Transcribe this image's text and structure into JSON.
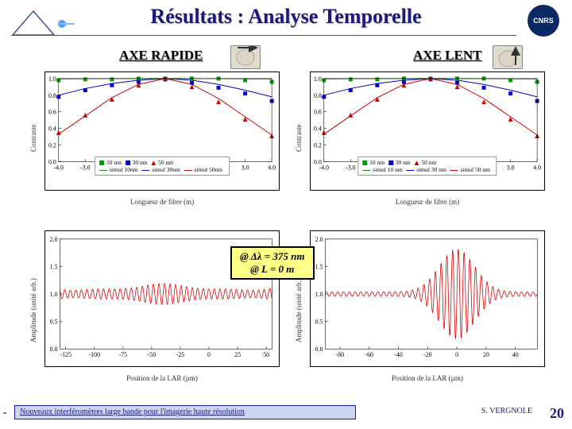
{
  "header": {
    "title": "Résultats : Analyse Temporelle",
    "logo_right_text": "CNRS"
  },
  "axis_headers": {
    "rapide": "AXE RAPIDE",
    "lent": "AXE LENT"
  },
  "top_chart": {
    "type": "scatter+line",
    "yaxis_label": "Contraste",
    "xaxis_label": "Longueur de fibre (m)",
    "ylim": [
      0.0,
      1.0
    ],
    "yticks": [
      0.0,
      0.2,
      0.4,
      0.6,
      0.8,
      1.0
    ],
    "xlim": [
      -4.0,
      4.0
    ],
    "xticks": [
      -4.0,
      -3.0,
      -2.0,
      -1.0,
      0.0,
      1.0,
      2.0,
      3.0,
      4.0
    ],
    "legend_items": [
      {
        "marker": "square",
        "color": "#009900",
        "label": "10 nm"
      },
      {
        "marker": "line",
        "color": "#009900",
        "label": "simul 10nm"
      },
      {
        "marker": "square",
        "color": "#0000cc",
        "label": "30 nm"
      },
      {
        "marker": "line",
        "color": "#0000cc",
        "label": "simul 30nm"
      },
      {
        "marker": "triangle",
        "color": "#cc0000",
        "label": "50 nm"
      },
      {
        "marker": "line",
        "color": "#cc0000",
        "label": "simul 50nm"
      }
    ],
    "series": {
      "green_pts": {
        "color": "#009900",
        "x": [
          -4,
          -3,
          -2,
          -1,
          0,
          1,
          2,
          3,
          4
        ],
        "y": [
          0.98,
          0.99,
          0.99,
          1.0,
          1.0,
          1.0,
          1.0,
          0.98,
          0.96
        ]
      },
      "blue_pts": {
        "color": "#0000cc",
        "x": [
          -4,
          -3,
          -2,
          -1,
          0,
          1,
          2,
          3,
          4
        ],
        "y": [
          0.78,
          0.86,
          0.92,
          0.96,
          0.99,
          0.95,
          0.89,
          0.82,
          0.73
        ]
      },
      "red_pts": {
        "color": "#cc0000",
        "marker": "triangle",
        "x": [
          -4,
          -3,
          -2,
          -1,
          0,
          1,
          2,
          3,
          4
        ],
        "y": [
          0.35,
          0.56,
          0.75,
          0.92,
          1.0,
          0.9,
          0.72,
          0.51,
          0.31
        ]
      },
      "green_line": {
        "color": "#009900",
        "x": [
          -4,
          -3,
          -2,
          -1,
          0,
          1,
          2,
          3,
          4
        ],
        "y": [
          0.995,
          0.998,
          0.999,
          1.0,
          1.0,
          1.0,
          0.999,
          0.997,
          0.995
        ]
      },
      "blue_line": {
        "color": "#0000cc",
        "x": [
          -4,
          -3,
          -2,
          -1,
          0,
          1,
          2,
          3,
          4
        ],
        "y": [
          0.8,
          0.88,
          0.94,
          0.98,
          1.0,
          0.98,
          0.93,
          0.86,
          0.78
        ]
      },
      "red_line": {
        "color": "#cc0000",
        "x": [
          -4,
          -3,
          -2,
          -1,
          0,
          1,
          2,
          3,
          4
        ],
        "y": [
          0.33,
          0.55,
          0.77,
          0.93,
          1.0,
          0.93,
          0.76,
          0.54,
          0.32
        ]
      }
    }
  },
  "top_right_chart": {
    "legend_items": [
      {
        "marker": "square",
        "color": "#009900",
        "label": "10 nm"
      },
      {
        "marker": "line",
        "color": "#009900",
        "label": "simul 10 nm"
      },
      {
        "marker": "square",
        "color": "#0000cc",
        "label": "30 nm"
      },
      {
        "marker": "line",
        "color": "#0000cc",
        "label": "simul 30 nm"
      },
      {
        "marker": "triangle",
        "color": "#cc0000",
        "label": "50 nm"
      },
      {
        "marker": "line",
        "color": "#cc0000",
        "label": "simul 50 nm"
      }
    ]
  },
  "bottom_chart": {
    "type": "line",
    "yaxis_label": "Amplitude (unité arb.)",
    "xaxis_label": "Position de la LAR (µm)",
    "ylim": [
      0.0,
      2.0
    ],
    "yticks": [
      0.0,
      0.5,
      1.0,
      1.5,
      2.0
    ],
    "xlim": [
      -130,
      55
    ],
    "xticks": [
      -125,
      -100,
      -75,
      -50,
      -25,
      0,
      25,
      50
    ],
    "xlim_right": [
      -90,
      55
    ],
    "xticks_right": [
      -80,
      -60,
      -40,
      -20,
      0,
      20,
      40
    ],
    "line_color": "#dd0000",
    "baseline": 1.0
  },
  "annotation": {
    "line1": "@ Δλ = 375 nm",
    "line2": "@ L = 0 m"
  },
  "footer": {
    "caption": "Nouveaux interféromètres large bande pour l'imagerie haute résolution",
    "author": "S. VERGNOLE",
    "page": "20"
  },
  "colors": {
    "title_color": "#1a1a7a",
    "accent_bg": "#cdd6f0",
    "anno_bg": "#ffff88"
  }
}
